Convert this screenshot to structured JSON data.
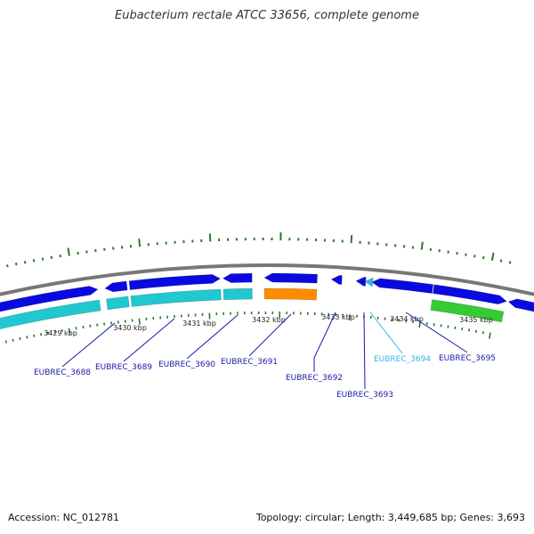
{
  "title": "Eubacterium rectale ATCC 33656, complete genome",
  "footer": {
    "accession": "Accession: NC_012781",
    "summary": "Topology: circular; Length: 3,449,685 bp; Genes: 3,693"
  },
  "colors": {
    "backbone": "#888888",
    "forward_gene": "#0a0ae0",
    "reverse_cds": "#20c8d0",
    "rna_gene": "#ff8c00",
    "other_feature": "#33cc33",
    "highlight": "#33b8e8",
    "tick": "#2a7a2a",
    "label": "#1a1aa8"
  },
  "scale_ticks": [
    "3429 kbp",
    "3430 kbp",
    "3431 kbp",
    "3432 kbp",
    "3433 kbp",
    "3434 kbp",
    "3435 kbp"
  ],
  "gene_labels": [
    {
      "name": "EUBREC_3688",
      "highlight": false
    },
    {
      "name": "EUBREC_3689",
      "highlight": false
    },
    {
      "name": "EUBREC_3690",
      "highlight": false
    },
    {
      "name": "EUBREC_3691",
      "highlight": false
    },
    {
      "name": "EUBREC_3692",
      "highlight": false
    },
    {
      "name": "EUBREC_3693",
      "highlight": false
    },
    {
      "name": "EUBREC_3694",
      "highlight": true
    },
    {
      "name": "EUBREC_3695",
      "highlight": false
    }
  ]
}
